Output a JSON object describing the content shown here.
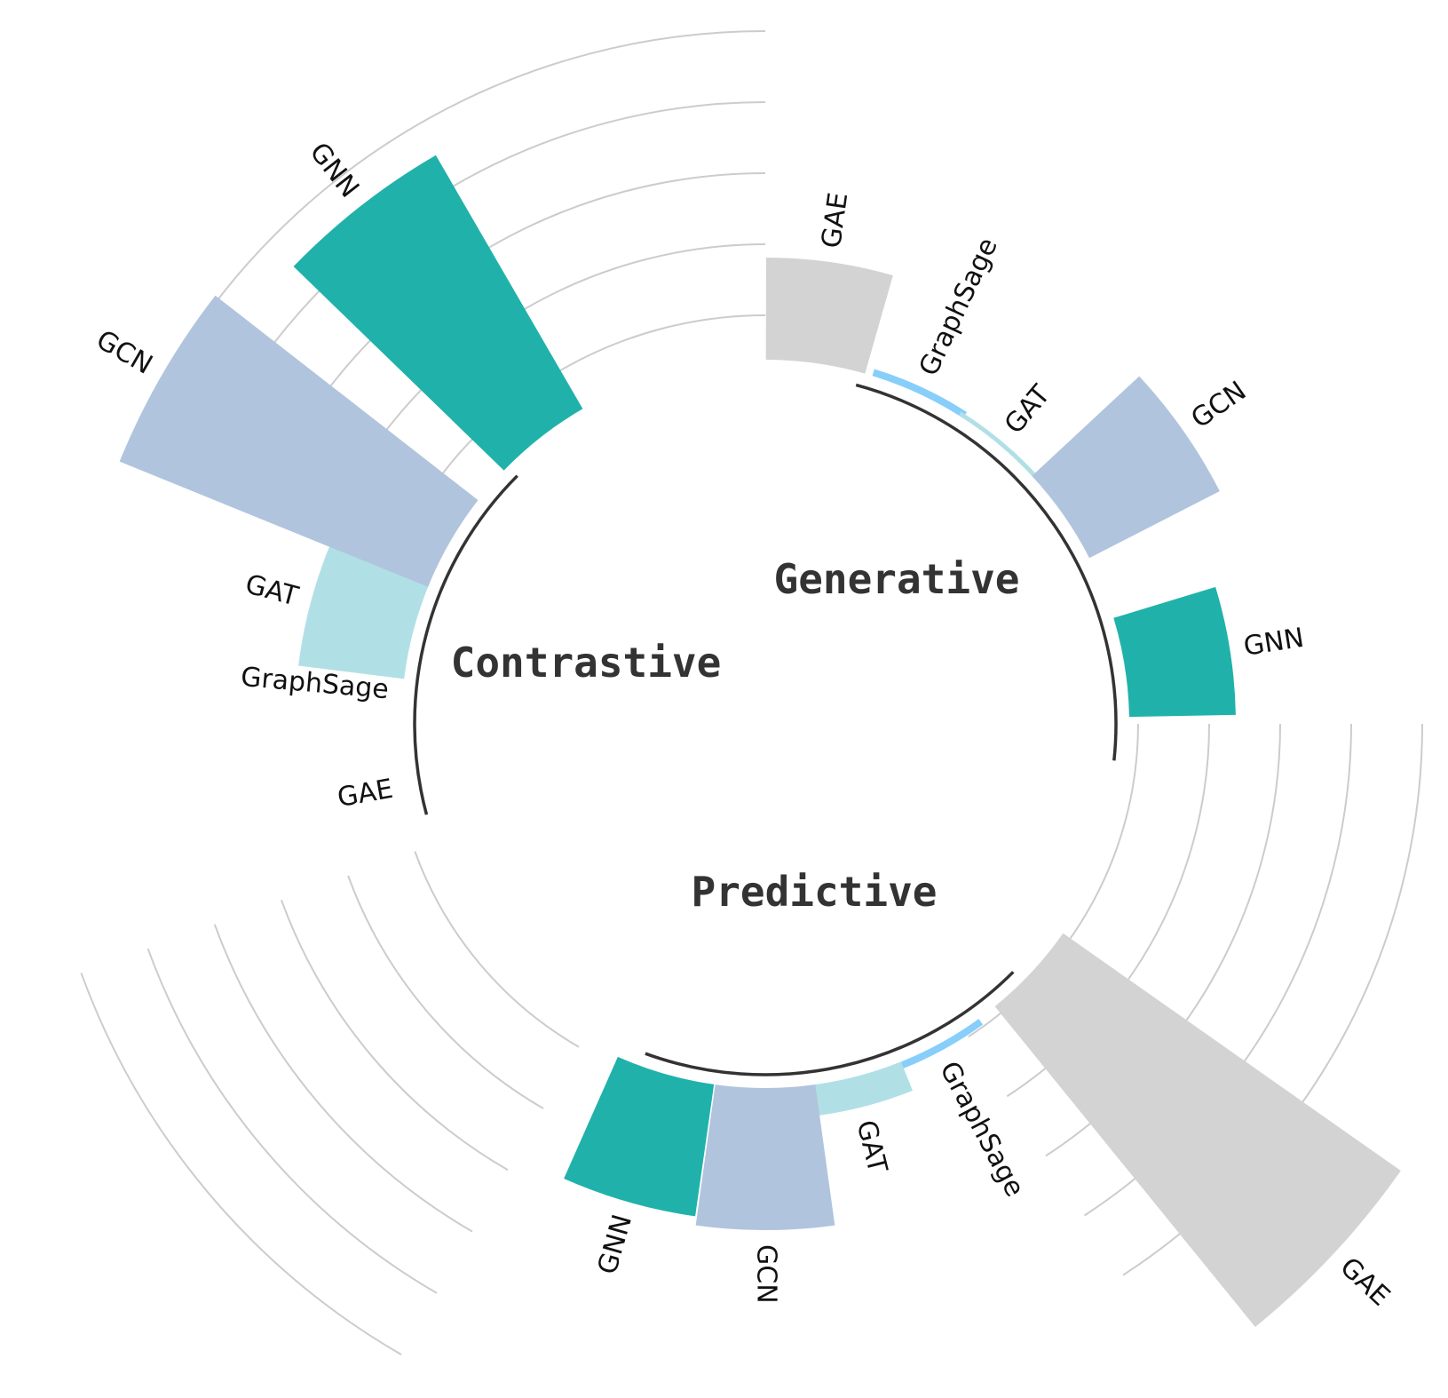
{
  "chart_data": {
    "type": "bar",
    "layout": "radial",
    "grid": true,
    "groups": [
      {
        "name": "Generative",
        "categories": [
          "GAE",
          "GraphSage",
          "GAT",
          "GCN",
          "GNN"
        ],
        "values": [
          115,
          8,
          5,
          165,
          120
        ]
      },
      {
        "name": "Predictive",
        "categories": [
          "GAE",
          "GraphSage",
          "GAT",
          "GCN",
          "GNN"
        ],
        "values": [
          465,
          8,
          35,
          160,
          150
        ]
      },
      {
        "name": "Contrastive",
        "categories": [
          "GAE",
          "GraphSage",
          "GAT",
          "GCN",
          "GNN"
        ],
        "values": [
          0,
          0,
          120,
          375,
          330
        ]
      }
    ],
    "colors": {
      "GAE": "#d3d3d3",
      "GraphSage": "#87cefa",
      "GAT": "#b0e0e6",
      "GCN": "#b0c4de",
      "GNN": "#20b2aa"
    }
  }
}
